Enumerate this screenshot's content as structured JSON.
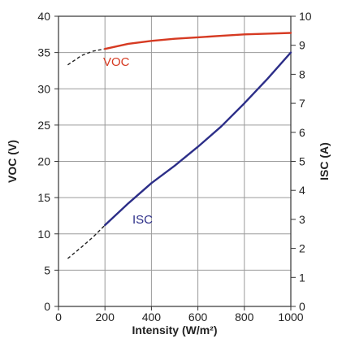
{
  "chart_data": {
    "type": "line",
    "title": "",
    "xlabel": "Intensity (W/m²)",
    "ylabel_left": "VOC (V)",
    "ylabel_right": "ISC (A)",
    "xlim": [
      0,
      1000
    ],
    "ylim_left": [
      0,
      40
    ],
    "ylim_right": [
      0,
      10
    ],
    "x_ticks": [
      0,
      200,
      400,
      600,
      800,
      1000
    ],
    "y_left_ticks": [
      0,
      5,
      10,
      15,
      20,
      25,
      30,
      35,
      40
    ],
    "y_right_ticks": [
      0,
      1,
      2,
      3,
      4,
      5,
      6,
      7,
      8,
      9,
      10
    ],
    "grid": true,
    "series": [
      {
        "name": "VOC",
        "axis": "left",
        "color": "#d63a22",
        "x": [
          200,
          300,
          400,
          500,
          600,
          700,
          800,
          900,
          1000
        ],
        "y": [
          35.5,
          36.2,
          36.6,
          36.9,
          37.1,
          37.3,
          37.5,
          37.6,
          37.7
        ],
        "extrapolated": {
          "x": [
            40,
            100,
            150,
            200
          ],
          "y": [
            33.3,
            34.6,
            35.2,
            35.5
          ]
        }
      },
      {
        "name": "ISC",
        "axis": "right",
        "color": "#2c2e88",
        "x": [
          200,
          300,
          400,
          500,
          600,
          700,
          800,
          900,
          1000
        ],
        "y": [
          2.8,
          3.55,
          4.25,
          4.85,
          5.5,
          6.2,
          7.0,
          7.85,
          8.75
        ],
        "extrapolated": {
          "x": [
            40,
            100,
            150,
            200
          ],
          "y": [
            1.65,
            2.05,
            2.4,
            2.8
          ]
        }
      }
    ]
  }
}
